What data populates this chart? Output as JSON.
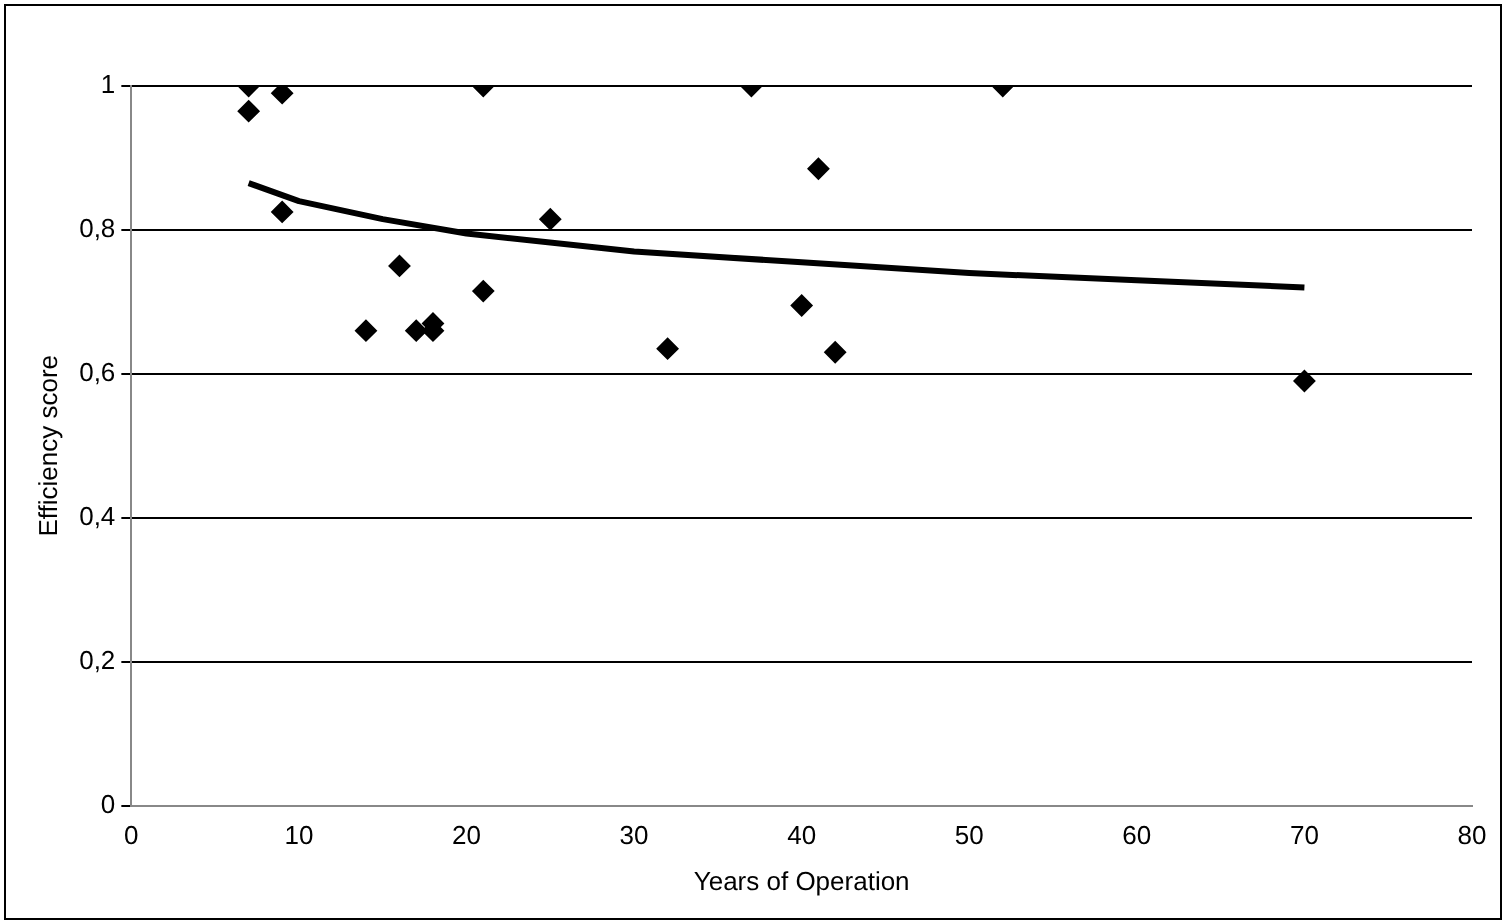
{
  "chart_data": {
    "type": "scatter",
    "xlabel": "Years of Operation",
    "ylabel": "Efficiency score",
    "xlim": [
      0,
      80
    ],
    "xticks": [
      0,
      10,
      20,
      30,
      40,
      50,
      60,
      70,
      80
    ],
    "ylim": [
      0,
      1
    ],
    "yticks": [
      0,
      {
        "value": 0.2,
        "label": "0,2"
      },
      {
        "value": 0.4,
        "label": "0,4"
      },
      {
        "value": 0.6,
        "label": "0,6"
      },
      {
        "value": 0.8,
        "label": "0,8"
      },
      1
    ],
    "grid": "y",
    "legend": false,
    "marker": "diamond",
    "series": [
      {
        "type": "scatter",
        "color": "#000000",
        "x": [
          7,
          7,
          9,
          9,
          14,
          16,
          17,
          18,
          18,
          21,
          21,
          25,
          32,
          37,
          40,
          41,
          42,
          52,
          70
        ],
        "values": [
          1,
          0.965,
          0.99,
          0.825,
          0.66,
          0.75,
          0.66,
          0.67,
          0.66,
          1,
          0.715,
          0.815,
          0.635,
          1,
          0.695,
          0.885,
          0.63,
          1,
          0.59
        ]
      },
      {
        "type": "line",
        "color": "#000000",
        "marker": "none",
        "x": [
          7,
          10,
          15,
          20,
          30,
          40,
          50,
          60,
          70
        ],
        "values": [
          0.865,
          0.84,
          0.815,
          0.795,
          0.77,
          0.755,
          0.74,
          0.73,
          0.72
        ]
      }
    ]
  }
}
